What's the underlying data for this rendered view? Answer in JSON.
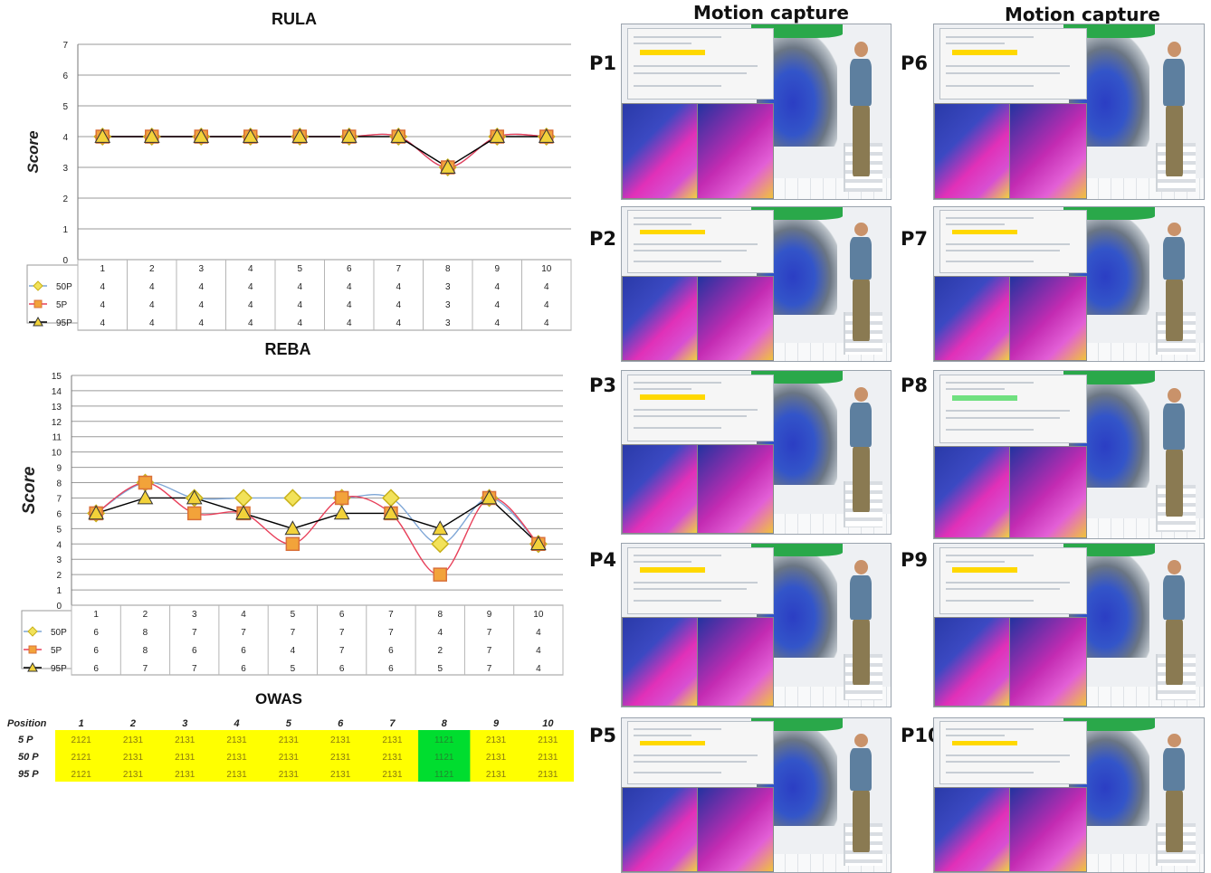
{
  "chart_data": [
    {
      "type": "line",
      "title": "RULA",
      "ylabel": "Score",
      "ylim": [
        0,
        7
      ],
      "yticks": [
        0,
        1,
        2,
        3,
        4,
        5,
        6,
        7
      ],
      "categories": [
        "1",
        "2",
        "3",
        "4",
        "5",
        "6",
        "7",
        "8",
        "9",
        "10"
      ],
      "grid": true,
      "series": [
        {
          "name": "50P",
          "color": "#7ea6d6",
          "marker": "diamond",
          "values": [
            4,
            4,
            4,
            4,
            4,
            4,
            4,
            3,
            4,
            4
          ]
        },
        {
          "name": "5P",
          "color": "#e8405a",
          "marker": "square",
          "values": [
            4,
            4,
            4,
            4,
            4,
            4,
            4,
            3,
            4,
            4
          ]
        },
        {
          "name": "95P",
          "color": "#000000",
          "marker": "triangle",
          "values": [
            4,
            4,
            4,
            4,
            4,
            4,
            4,
            3,
            4,
            4
          ]
        }
      ]
    },
    {
      "type": "line",
      "title": "REBA",
      "ylabel": "Score",
      "ylim": [
        0,
        15
      ],
      "yticks": [
        0,
        1,
        2,
        3,
        4,
        5,
        6,
        7,
        8,
        9,
        10,
        11,
        12,
        13,
        14,
        15
      ],
      "categories": [
        "1",
        "2",
        "3",
        "4",
        "5",
        "6",
        "7",
        "8",
        "9",
        "10"
      ],
      "grid": true,
      "series": [
        {
          "name": "50P",
          "color": "#7ea6d6",
          "marker": "diamond",
          "values": [
            6,
            8,
            7,
            7,
            7,
            7,
            7,
            4,
            7,
            4
          ]
        },
        {
          "name": "5P",
          "color": "#e8405a",
          "marker": "square",
          "values": [
            6,
            8,
            6,
            6,
            4,
            7,
            6,
            2,
            7,
            4
          ]
        },
        {
          "name": "95P",
          "color": "#000000",
          "marker": "triangle",
          "values": [
            6,
            7,
            7,
            6,
            5,
            6,
            6,
            5,
            7,
            4
          ]
        }
      ]
    },
    {
      "type": "table",
      "title": "OWAS",
      "row_header": "Position",
      "columns": [
        "1",
        "2",
        "3",
        "4",
        "5",
        "6",
        "7",
        "8",
        "9",
        "10"
      ],
      "rows": [
        {
          "label": "5 P",
          "values": [
            "2121",
            "2131",
            "2131",
            "2131",
            "2131",
            "2131",
            "2131",
            "1121",
            "2131",
            "2131"
          ]
        },
        {
          "label": "50 P",
          "values": [
            "2121",
            "2131",
            "2131",
            "2131",
            "2131",
            "2131",
            "2131",
            "1121",
            "2131",
            "2131"
          ]
        },
        {
          "label": "95 P",
          "values": [
            "2121",
            "2131",
            "2131",
            "2131",
            "2131",
            "2131",
            "2131",
            "1121",
            "2131",
            "2131"
          ]
        }
      ],
      "cell_color": "#ffff00",
      "highlight_column": "8",
      "highlight_color": "#00dd2f"
    }
  ],
  "motion_capture": {
    "column_titles": [
      "Motion capture",
      "Motion capture"
    ],
    "panels": [
      {
        "label": "P1"
      },
      {
        "label": "P2"
      },
      {
        "label": "P3"
      },
      {
        "label": "P4"
      },
      {
        "label": "P5"
      },
      {
        "label": "P6"
      },
      {
        "label": "P7"
      },
      {
        "label": "P8"
      },
      {
        "label": "P9"
      },
      {
        "label": "P10"
      }
    ]
  }
}
